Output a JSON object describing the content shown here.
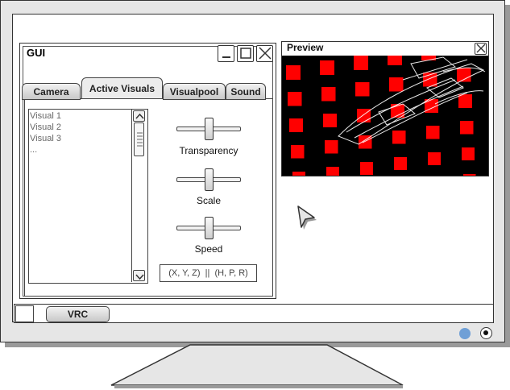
{
  "gui_window": {
    "title": "GUI",
    "tabs": [
      {
        "label": "Camera",
        "active": false
      },
      {
        "label": "Active Visuals",
        "active": true
      },
      {
        "label": "Visualpool",
        "active": false
      },
      {
        "label": "Sound",
        "active": false
      }
    ],
    "visual_list": [
      "Visual 1",
      "Visual 2",
      "Visual 3",
      "..."
    ],
    "sliders": [
      {
        "label": "Transparency",
        "value": 0.5
      },
      {
        "label": "Scale",
        "value": 0.5
      },
      {
        "label": "Speed",
        "value": 0.5
      }
    ],
    "coords_text": "(X, Y, Z)  ||  (H, P, R)"
  },
  "preview_window": {
    "title": "Preview"
  },
  "taskbar": {
    "vrc_label": "VRC"
  },
  "icons": {
    "minimize": "minimize-icon",
    "maximize": "maximize-icon",
    "close": "close-icon",
    "cursor": "cursor-icon",
    "scroll_up": "scroll-up-icon",
    "scroll_down": "scroll-down-icon"
  },
  "colors": {
    "preview_squares": "#ff0000",
    "preview_background": "#000000",
    "status_led": "#6f9fd6"
  }
}
